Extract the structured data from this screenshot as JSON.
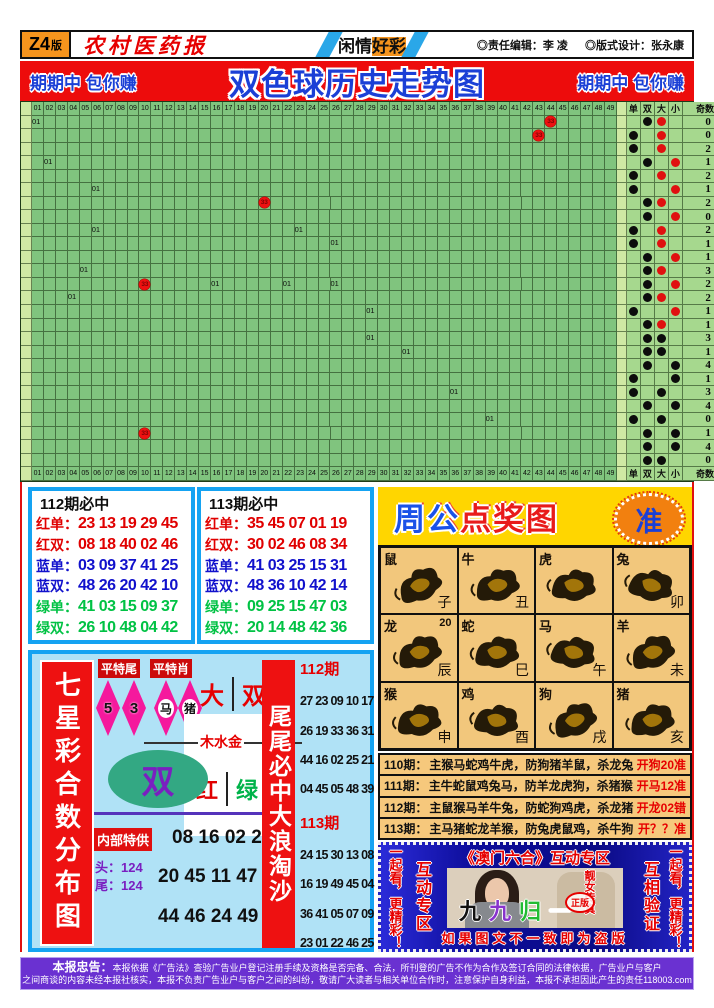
{
  "masthead": {
    "edition_big": "Z4",
    "edition_small": "版",
    "paper_name": "农村医药报",
    "ribbon": "闲情",
    "ribbon_highlight": "好彩",
    "editor": "◎责任编辑：李 凌",
    "designer": "◎版式设计：张永康"
  },
  "banner": {
    "left_slogan": "期期中 包你赚",
    "title": "双色球历史走势图",
    "right_slogan": "期期中 包你赚"
  },
  "chart_data": {
    "type": "table",
    "title": "双色球历史走势图",
    "columns": [
      "01",
      "02",
      "03",
      "04",
      "05",
      "06",
      "07",
      "08",
      "09",
      "10",
      "11",
      "12",
      "13",
      "14",
      "15",
      "16",
      "17",
      "18",
      "19",
      "20",
      "21",
      "22",
      "23",
      "24",
      "25",
      "26",
      "27",
      "28",
      "29",
      "30",
      "31",
      "32",
      "33",
      "34",
      "35",
      "36",
      "37",
      "38",
      "39",
      "40",
      "41",
      "42",
      "43",
      "44",
      "45",
      "46",
      "47",
      "48",
      "49"
    ],
    "columns_repeat_in_footer": true,
    "right_headers": [
      "单",
      "双",
      "大",
      "小"
    ],
    "ratio_header": "奇数:偶数",
    "legend_note": "marks: t=cell text, ball=red lottery ball; parity=单/双 dot, size=大/小 dot (red for top rows, black for bottom rows)",
    "rows": [
      {
        "marks": [
          {
            "col": 1,
            "t": "01"
          },
          {
            "col": 44,
            "t": "33",
            "ball": true
          }
        ],
        "parity": "双",
        "size": "大",
        "size_red": true,
        "ratio": "0 : 1"
      },
      {
        "marks": [
          {
            "col": 43,
            "t": "33",
            "ball": true
          }
        ],
        "parity": "单",
        "size": "大",
        "size_red": true,
        "ratio": "0 : 9"
      },
      {
        "marks": [],
        "parity": "单",
        "size": "大",
        "size_red": true,
        "ratio": "2 : 2"
      },
      {
        "marks": [
          {
            "col": 2,
            "t": "01"
          }
        ],
        "parity": "双",
        "size": "小",
        "size_red": true,
        "ratio": "1 : 1"
      },
      {
        "marks": [],
        "parity": "单",
        "size": "大",
        "size_red": true,
        "ratio": "2 : 6"
      },
      {
        "marks": [
          {
            "col": 6,
            "t": "01"
          }
        ],
        "parity": "单",
        "size": "小",
        "size_red": true,
        "ratio": "1 : 9"
      },
      {
        "marks": [
          {
            "col": 20,
            "t": "33",
            "ball": true
          }
        ],
        "parity": "双",
        "size": "大",
        "size_red": true,
        "ratio": "2 : 5"
      },
      {
        "marks": [],
        "parity": "双",
        "size": "小",
        "size_red": true,
        "ratio": "0 : 4"
      },
      {
        "marks": [
          {
            "col": 6,
            "t": "01"
          },
          {
            "col": 23,
            "t": "01"
          }
        ],
        "parity": "单",
        "size": "大",
        "size_red": true,
        "ratio": "2 : 7"
      },
      {
        "marks": [
          {
            "col": 26,
            "t": "01"
          }
        ],
        "parity": "单",
        "size": "大",
        "size_red": true,
        "ratio": "1 : 4"
      },
      {
        "marks": [],
        "parity": "双",
        "size": "小",
        "size_red": true,
        "ratio": "1 : 2"
      },
      {
        "marks": [
          {
            "col": 5,
            "t": "01"
          }
        ],
        "parity": "双",
        "size": "大",
        "size_red": true,
        "ratio": "3 : 1"
      },
      {
        "marks": [
          {
            "col": 10,
            "t": "33",
            "ball": true
          },
          {
            "col": 16,
            "t": "01"
          },
          {
            "col": 22,
            "t": "01"
          },
          {
            "col": 26,
            "t": "01"
          }
        ],
        "parity": "双",
        "size": "小",
        "size_red": true,
        "ratio": "2 : 2"
      },
      {
        "marks": [
          {
            "col": 4,
            "t": "01"
          }
        ],
        "parity": "双",
        "size": "大",
        "size_red": true,
        "ratio": "2 : 3"
      },
      {
        "marks": [
          {
            "col": 29,
            "t": "01"
          }
        ],
        "parity": "单",
        "size": "小",
        "size_red": true,
        "ratio": "1 : 9"
      },
      {
        "marks": [],
        "parity": "双",
        "size": "大",
        "size_red": true,
        "ratio": "1 : 5"
      },
      {
        "marks": [
          {
            "col": 29,
            "t": "01"
          }
        ],
        "parity": "双",
        "size": "大",
        "size_red": false,
        "ratio": "3 : 4"
      },
      {
        "marks": [
          {
            "col": 32,
            "t": "01"
          }
        ],
        "parity": "双",
        "size": "大",
        "size_red": false,
        "ratio": "1 : 0"
      },
      {
        "marks": [],
        "parity": "双",
        "size": "小",
        "size_red": false,
        "ratio": "4 : 0"
      },
      {
        "marks": [],
        "parity": "单",
        "size": "小",
        "size_red": false,
        "ratio": "1 : 1"
      },
      {
        "marks": [
          {
            "col": 36,
            "t": "01"
          }
        ],
        "parity": "单",
        "size": "大",
        "size_red": false,
        "ratio": "3 : 5"
      },
      {
        "marks": [],
        "parity": "双",
        "size": "小",
        "size_red": false,
        "ratio": "4 : 9"
      },
      {
        "marks": [
          {
            "col": 39,
            "t": "01"
          }
        ],
        "parity": "单",
        "size": "大",
        "size_red": false,
        "ratio": "0 : 3"
      },
      {
        "marks": [
          {
            "col": 10,
            "t": "33",
            "ball": true
          }
        ],
        "parity": "双",
        "size": "小",
        "size_red": false,
        "ratio": "1 : 4"
      },
      {
        "marks": [],
        "parity": "双",
        "size": "小",
        "size_red": false,
        "ratio": "4 : 7"
      },
      {
        "marks": [],
        "parity": "双",
        "size": "大",
        "size_red": false,
        "ratio": "0 : 8"
      }
    ]
  },
  "predictions": [
    {
      "title": "112期必中",
      "rows": [
        {
          "label": "红单：",
          "values": "23 13 19 29 45",
          "color": "red"
        },
        {
          "label": "红双：",
          "values": "08 18 40 02 46",
          "color": "red"
        },
        {
          "label": "蓝单：",
          "values": "03 09 37 41 25",
          "color": "blue"
        },
        {
          "label": "蓝双：",
          "values": "48 26 20 42 10",
          "color": "blue"
        },
        {
          "label": "绿单：",
          "values": "41 03 15 09 37",
          "color": "green"
        },
        {
          "label": "绿双：",
          "values": "26 10 48 04 42",
          "color": "green"
        }
      ]
    },
    {
      "title": "113期必中",
      "rows": [
        {
          "label": "红单：",
          "values": "35 45 07 01 19",
          "color": "red"
        },
        {
          "label": "红双：",
          "values": "30 02 46 08 34",
          "color": "red"
        },
        {
          "label": "蓝单：",
          "values": "41 03 25 15 31",
          "color": "blue"
        },
        {
          "label": "蓝双：",
          "values": "48 36 10 42 14",
          "color": "blue"
        },
        {
          "label": "绿单：",
          "values": "09 25 15 47 03",
          "color": "green"
        },
        {
          "label": "绿双：",
          "values": "20 14 48 42 36",
          "color": "green"
        }
      ]
    }
  ],
  "zhougong": {
    "title": "周公点奖图",
    "title_colors": [
      "#1b52e8",
      "#1b52e8",
      "#e81b1b",
      "#e81b1b",
      "#e81b1b"
    ],
    "badge": "准",
    "cells": [
      {
        "name": "鼠",
        "branch": "子"
      },
      {
        "name": "牛",
        "branch": "丑"
      },
      {
        "name": "虎",
        "branch": ""
      },
      {
        "name": "兔",
        "branch": "卯"
      },
      {
        "name": "龙",
        "branch": "辰",
        "corner": "20"
      },
      {
        "name": "蛇",
        "branch": "巳"
      },
      {
        "name": "马",
        "branch": "午"
      },
      {
        "name": "羊",
        "branch": "未"
      },
      {
        "name": "猴",
        "branch": "申"
      },
      {
        "name": "鸡",
        "branch": "酉"
      },
      {
        "name": "狗",
        "branch": "戌"
      },
      {
        "name": "猪",
        "branch": "亥"
      }
    ],
    "periods": [
      {
        "label": "110期：",
        "body": "主猴马蛇鸡牛虎，防狗猪羊鼠，杀龙兔",
        "result": "开狗20准"
      },
      {
        "label": "111期：",
        "body": "主牛蛇鼠鸡兔马，防羊龙虎狗，杀猪猴",
        "result": "开马12准"
      },
      {
        "label": "112期：",
        "body": "主鼠猴马羊牛兔，防蛇狗鸡虎，杀龙猪",
        "result": "开龙02错"
      },
      {
        "label": "113期：",
        "body": "主马猪蛇龙羊猴，防兔虎鼠鸡，杀牛狗",
        "result": "开？？准"
      }
    ]
  },
  "macau": {
    "title": "《澳门六合》互动专区",
    "left_outer": "一起看，更精彩！",
    "left_inner": "互动专区",
    "right_inner": "互相验证",
    "right_outer": "一起看，更精彩！",
    "photo_caption": "靓女传真",
    "photo_slogan": "九九归一",
    "photo_slogan_colors": [
      "#111111",
      "#8833cc",
      "#22bb33",
      "#ffffff"
    ],
    "photo_badge": "正版",
    "bottom_note": "如果图文不一致即为盗版"
  },
  "qixing": {
    "side_title": "七星彩合数分布图",
    "tag1": "平特尾",
    "tag2": "平特肖",
    "diamonds": [
      "5",
      "3",
      "马",
      "猪"
    ],
    "big": "大",
    "dbl": "双",
    "elements": "木水金",
    "red": "红",
    "green": "绿",
    "oval": "双",
    "special_label": "内部特供",
    "special_numbers": "08 16 02 22",
    "head_label": "头：124",
    "tail_label": "尾：124",
    "numbers2": "20 45 11 47",
    "numbers3": "44 46 24 49"
  },
  "weiwei": {
    "side_title": "尾尾必中大浪淘沙",
    "groups": [
      {
        "period": "112期",
        "rows": [
          "27 23 09 10 17",
          "26 19 33 36 31",
          "44 16 02 25 21",
          "04 45 05 48 39"
        ]
      },
      {
        "period": "113期",
        "rows": [
          "24 15 30 13 08",
          "16 19 49 45 04",
          "36 41 05 07 09",
          "23 01 22 46 25"
        ]
      }
    ]
  },
  "disclaimer": {
    "bold": "本报忠告：",
    "line1": "本报依据《广告法》查验广告业户登记注册手续及资格是否完备、合法，所刊登的广告不作为合作及签订合同的法律依据，广告业户与客户",
    "line2": "之间商谈的内容未经本报社核实，本报不负责广告业户与客户之间的纠纷，敬请广大读者与相关单位合作时，注意保护自身利益，本报不承担因此产生的责任118003.com"
  },
  "colors": {
    "banner_red": "#ed0c0c",
    "banner_text_blue": "#1b3fd6",
    "grid_green": "#80c47e",
    "grid_light_green": "#cfe9a4",
    "box_border_blue": "#15a3f2",
    "zodiac_tan": "#f2c77c",
    "header_yellow": "#ffd600",
    "macau_blue": "#1515a8",
    "disclaimer_purple": "#6a31d1",
    "sky_blue": "#b0e2f6"
  }
}
